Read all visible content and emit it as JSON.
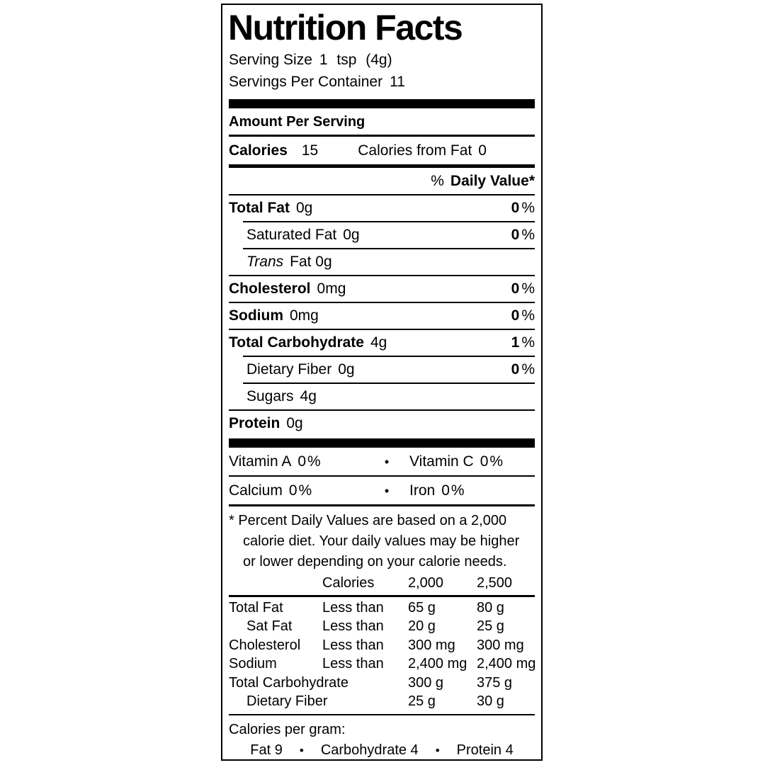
{
  "title": "Nutrition Facts",
  "percent_sign": "%",
  "bullet": "•",
  "serving": {
    "size_label": "Serving Size",
    "size_value": "1 tsp (4g)",
    "per_container_label": "Servings Per Container",
    "per_container_value": "11"
  },
  "amount_per_serving": "Amount Per Serving",
  "calories": {
    "label": "Calories",
    "value": "15",
    "from_fat_label": "Calories from Fat",
    "from_fat_value": "0"
  },
  "daily_value_header": {
    "percent": "%",
    "label": "Daily Value*"
  },
  "nutrients": [
    {
      "name": "Total Fat",
      "amount": "0g",
      "dv": "0"
    },
    {
      "name": "Saturated Fat",
      "amount": "0g",
      "dv": "0"
    },
    {
      "name_italic": "Trans",
      "name_rest": "Fat 0g"
    },
    {
      "name": "Cholesterol",
      "amount": "0mg",
      "dv": "0"
    },
    {
      "name": "Sodium",
      "amount": "0mg",
      "dv": "0"
    },
    {
      "name": "Total Carbohydrate",
      "amount": "4g",
      "dv": "1"
    },
    {
      "name": "Dietary Fiber",
      "amount": "0g",
      "dv": "0"
    },
    {
      "name": "Sugars",
      "amount": "4g"
    },
    {
      "name": "Protein",
      "amount": "0g"
    }
  ],
  "vitamins": [
    {
      "left_name": "Vitamin A",
      "left_value": "0",
      "right_name": "Vitamin C",
      "right_value": "0"
    },
    {
      "left_name": "Calcium",
      "left_value": "0",
      "right_name": "Iron",
      "right_value": "0"
    }
  ],
  "footnote_lines": [
    "* Percent Daily Values are based on a 2,000",
    "calorie diet. Your daily values may be higher",
    "or lower depending on your calorie needs."
  ],
  "dv_table": {
    "col_headers": [
      "Calories",
      "2,000",
      "2,500"
    ],
    "rows": [
      {
        "name": "Total Fat",
        "qualifier": "Less than",
        "v2000": "65 g",
        "v2500": "80 g"
      },
      {
        "name": "Sat Fat",
        "qualifier": "Less than",
        "v2000": "20 g",
        "v2500": "25 g"
      },
      {
        "name": "Cholesterol",
        "qualifier": "Less than",
        "v2000": "300 mg",
        "v2500": "300 mg"
      },
      {
        "name": "Sodium",
        "qualifier": "Less than",
        "v2000": "2,400 mg",
        "v2500": "2,400 mg"
      },
      {
        "name": "Total Carbohydrate",
        "qualifier": "",
        "v2000": "300 g",
        "v2500": "375 g"
      },
      {
        "name": "Dietary Fiber",
        "qualifier": "",
        "v2000": "25 g",
        "v2500": "30 g"
      }
    ]
  },
  "calories_per_gram": {
    "label": "Calories per gram:",
    "items": [
      "Fat 9",
      "Carbohydrate 4",
      "Protein 4"
    ]
  }
}
